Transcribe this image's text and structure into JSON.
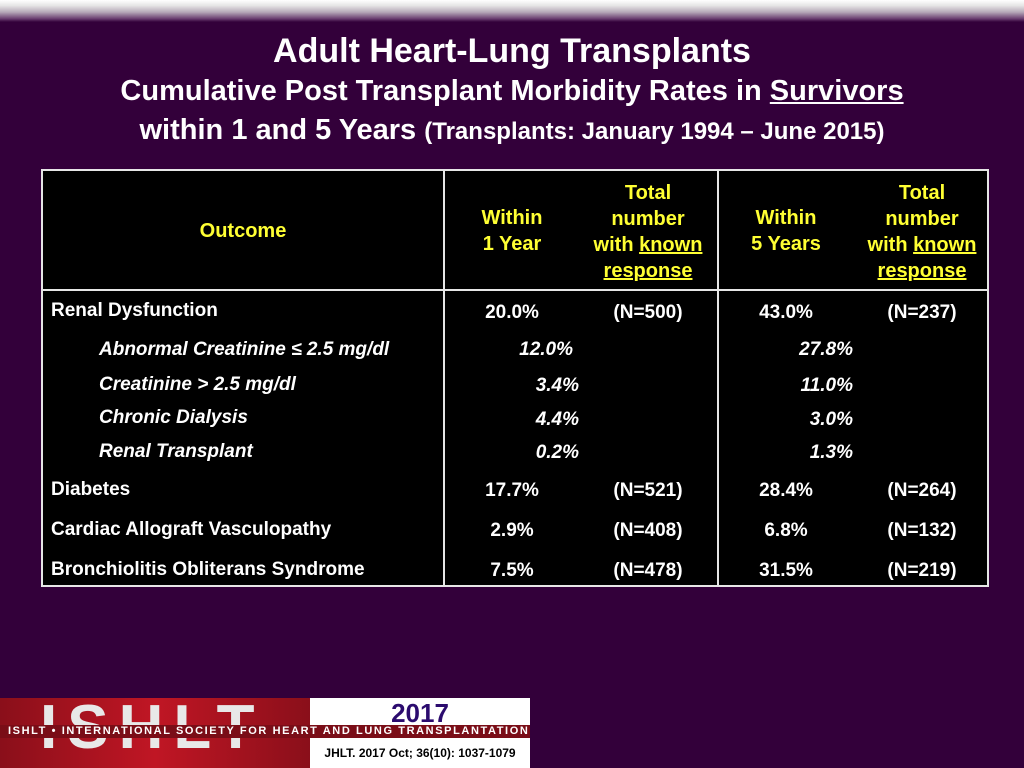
{
  "title": {
    "line1": "Adult Heart-Lung Transplants",
    "line2_prefix": "Cumulative Post Transplant Morbidity Rates in ",
    "line2_underlined": "Survivors",
    "line3_main": "within 1 and 5 Years",
    "line3_paren": "(Transplants: January 1994 – June 2015)"
  },
  "table": {
    "headers": {
      "outcome": "Outcome",
      "within1_line1": "Within",
      "within1_line2": "1 Year",
      "total1_line1": "Total",
      "total1_line2": "number",
      "total1_line3a": "with ",
      "total1_line3b": "known",
      "total1_line4": "response",
      "within5_line1": "Within",
      "within5_line2": "5 Years",
      "total5_line1": "Total",
      "total5_line2": "number",
      "total5_line3a": "with ",
      "total5_line3b": "known",
      "total5_line4": "response"
    },
    "rows": [
      {
        "label": "Renal Dysfunction",
        "y1": "20.0%",
        "n1": "(N=500)",
        "y5": "43.0%",
        "n5": "(N=237)"
      },
      {
        "label": "Abnormal Creatinine ≤ 2.5 mg/dl",
        "y1": "12.0%",
        "y5": "27.8%"
      },
      {
        "label": "Creatinine > 2.5 mg/dl",
        "y1": "3.4%",
        "y5": "11.0%"
      },
      {
        "label": "Chronic Dialysis",
        "y1": "4.4%",
        "y5": "3.0%"
      },
      {
        "label": "Renal Transplant",
        "y1": "0.2%",
        "y5": "1.3%"
      },
      {
        "label": "Diabetes",
        "y1": "17.7%",
        "n1": "(N=521)",
        "y5": "28.4%",
        "n5": "(N=264)"
      },
      {
        "label": "Cardiac Allograft Vasculopathy",
        "y1": "2.9%",
        "n1": "(N=408)",
        "y5": "6.8%",
        "n5": "(N=132)"
      },
      {
        "label": "Bronchiolitis Obliterans Syndrome",
        "y1": "7.5%",
        "n1": "(N=478)",
        "y5": "31.5%",
        "n5": "(N=219)"
      }
    ]
  },
  "footer": {
    "logo_text": "ISHLT",
    "year": "2017",
    "strip": "ISHLT • INTERNATIONAL SOCIETY FOR HEART AND LUNG TRANSPLANTATION",
    "citation": "JHLT. 2017 Oct; 36(10): 1037-1079"
  },
  "colors": {
    "background": "#33003a",
    "header_text": "#ffff33",
    "table_bg": "#000000",
    "logo_red": "#c01624"
  }
}
